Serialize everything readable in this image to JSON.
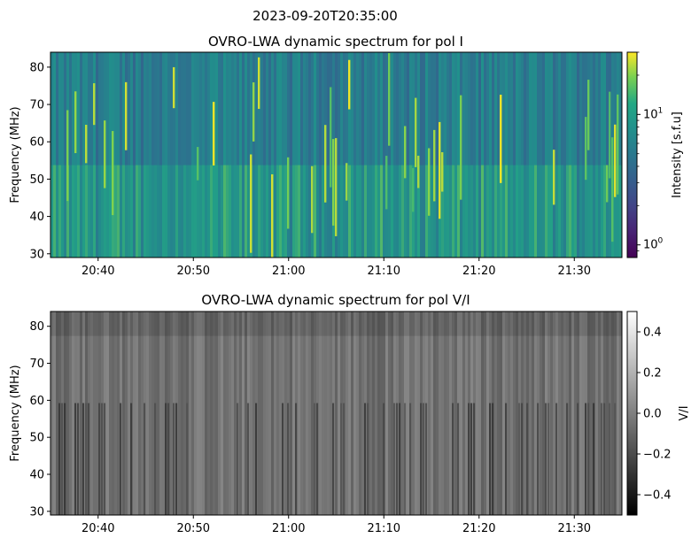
{
  "figure": {
    "suptitle": "2023-09-20T20:35:00"
  },
  "chart_data": [
    {
      "type": "heatmap",
      "title": "OVRO-LWA dynamic spectrum for pol I",
      "xlabel": "",
      "ylabel": "Frequency (MHz)",
      "x_ticks": [
        "20:40",
        "20:50",
        "21:00",
        "21:10",
        "21:20",
        "21:30"
      ],
      "x_tick_minutes": [
        5,
        15,
        25,
        35,
        45,
        55
      ],
      "x_range_minutes": [
        0,
        60
      ],
      "x_start_time": "20:35",
      "y_ticks": [
        30,
        40,
        50,
        60,
        70,
        80
      ],
      "ylim": [
        29,
        84
      ],
      "colormap": "viridis",
      "color_scale": "log",
      "colorbar": {
        "label": "Intensity [s.f.u]",
        "range": [
          0.8,
          30
        ],
        "major_ticks": [
          {
            "base": "10",
            "exp": "0",
            "value": 1
          },
          {
            "base": "10",
            "exp": "1",
            "value": 10
          }
        ]
      }
    },
    {
      "type": "heatmap",
      "title": "OVRO-LWA dynamic spectrum for pol V/I",
      "xlabel": "",
      "ylabel": "Frequency (MHz)",
      "x_ticks": [
        "20:40",
        "20:50",
        "21:00",
        "21:10",
        "21:20",
        "21:30"
      ],
      "x_tick_minutes": [
        5,
        15,
        25,
        35,
        45,
        55
      ],
      "x_range_minutes": [
        0,
        60
      ],
      "x_start_time": "20:35",
      "y_ticks": [
        30,
        40,
        50,
        60,
        70,
        80
      ],
      "ylim": [
        29,
        84
      ],
      "colormap": "gray",
      "color_scale": "linear",
      "colorbar": {
        "label": "V/I",
        "range": [
          -0.5,
          0.5
        ],
        "ticks": [
          0.4,
          0.2,
          0.0,
          -0.2,
          -0.4
        ],
        "tick_labels": [
          "0.4",
          "0.2",
          "0.0",
          "−0.2",
          "−0.4"
        ]
      }
    }
  ]
}
